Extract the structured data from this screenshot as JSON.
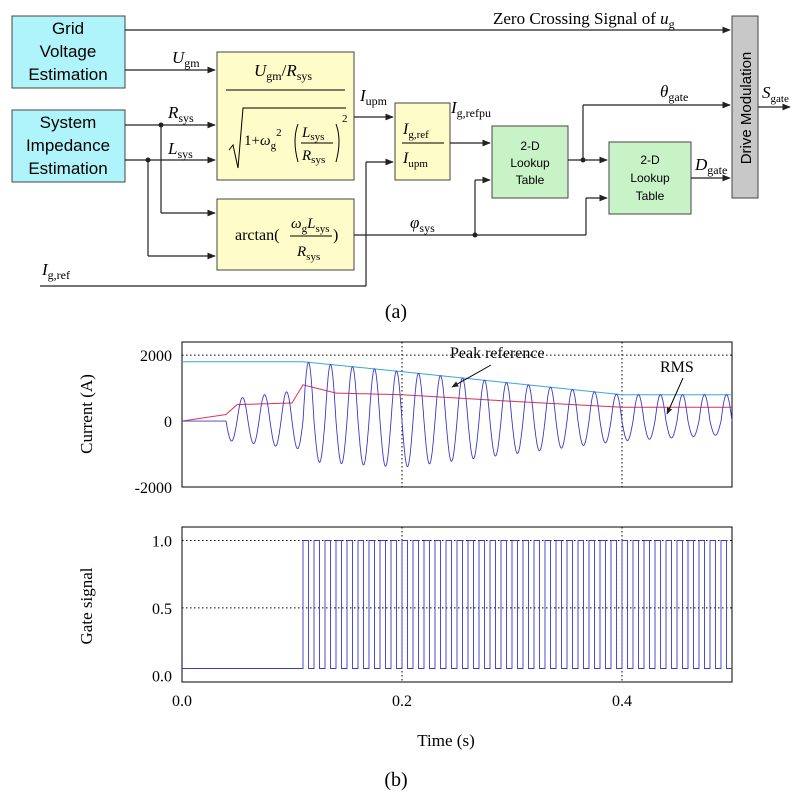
{
  "diagram": {
    "blocks": {
      "grid_voltage_estimation": [
        "Grid",
        "Voltage",
        "Estimation"
      ],
      "system_impedance_estimation": [
        "System",
        "Impedance",
        "Estimation"
      ],
      "lookup_table_1": [
        "2-D",
        "Lookup",
        "Table"
      ],
      "lookup_table_2": [
        "2-D",
        "Lookup",
        "Table"
      ],
      "drive_modulation": "Drive Modulation"
    },
    "signals": {
      "zero_crossing": "Zero Crossing Signal of ",
      "ug_main": "u",
      "ug_sub": "g",
      "ugm_main": "U",
      "ugm_sub": "gm",
      "rsys_main": "R",
      "rsys_sub": "sys",
      "lsys_main": "L",
      "lsys_sub": "sys",
      "iupm_main": "I",
      "iupm_sub": "upm",
      "igrefpu_main": "I",
      "igrefpu_sub": "g,refpu",
      "igref_main": "I",
      "igref_sub": "g,ref",
      "theta_main": "θ",
      "theta_sub": "gate",
      "dgate_main": "D",
      "dgate_sub": "gate",
      "phisys_main": "φ",
      "phisys_sub": "sys",
      "sgate_main": "S",
      "sgate_sub": "gate"
    },
    "formula_arctan_prefix": "arctan(",
    "formula_arctan_suffix": ")",
    "formula_omega": "ω",
    "formula_g": "g",
    "formula_one_plus": "1+",
    "formula_slash": "/",
    "formula_two": "2"
  },
  "captions": {
    "a": "(a)",
    "b": "(b)"
  },
  "chart_data": [
    {
      "type": "line",
      "title": "",
      "ylabel": "Current (A)",
      "xlim": [
        0.0,
        0.5
      ],
      "ylim": [
        -2000,
        2400
      ],
      "yticks": [
        "2000",
        "0",
        "-2000"
      ],
      "grid": "dotted at y=2000 and x=0.2, 0.4",
      "annotations": [
        "Peak reference",
        "RMS"
      ],
      "series": [
        {
          "name": "Peak reference",
          "color": "#3aa6d6",
          "x": [
            0.0,
            0.11,
            0.2,
            0.3,
            0.4,
            0.5
          ],
          "y": [
            1800,
            1800,
            1500,
            1150,
            800,
            800
          ]
        },
        {
          "name": "RMS",
          "color": "#e03050",
          "x": [
            0.0,
            0.04,
            0.05,
            0.1,
            0.11,
            0.14,
            0.2,
            0.3,
            0.4,
            0.5
          ],
          "y": [
            0,
            200,
            500,
            550,
            1100,
            850,
            800,
            600,
            420,
            420
          ]
        },
        {
          "name": "",
          "color": "#3a3ac8",
          "note": "current waveform, ~50 Hz oscillation, magnitude follows the peak envelope, positive peak 2200 at t=0.11, negative peak -1400 at t=0.2",
          "frequency_hz": 50,
          "x": [
            0.0,
            0.04,
            0.11,
            0.2,
            0.4,
            0.5
          ],
          "y": [
            0,
            0,
            2200,
            -1400,
            -600,
            -400
          ]
        }
      ]
    },
    {
      "type": "line",
      "ylabel": "Gate signal",
      "xlabel": "Time (s)",
      "xlim": [
        0.0,
        0.5
      ],
      "ylim": [
        -0.05,
        1.1
      ],
      "xticks": [
        "0.0",
        "0.2",
        "0.4"
      ],
      "yticks": [
        "1.0",
        "0.5",
        "0.0"
      ],
      "grid": "dotted at y=1.0, 0.5 and x=0.2, 0.4",
      "series": [
        {
          "name": "",
          "color": "#3a3ac8",
          "note": "square wave 0.05 to 1.0, starting at t=0.11, period ~0.01 s",
          "x": [
            0.0,
            0.11,
            0.5
          ],
          "y": [
            0.05,
            1.0,
            1.0
          ]
        }
      ]
    }
  ]
}
